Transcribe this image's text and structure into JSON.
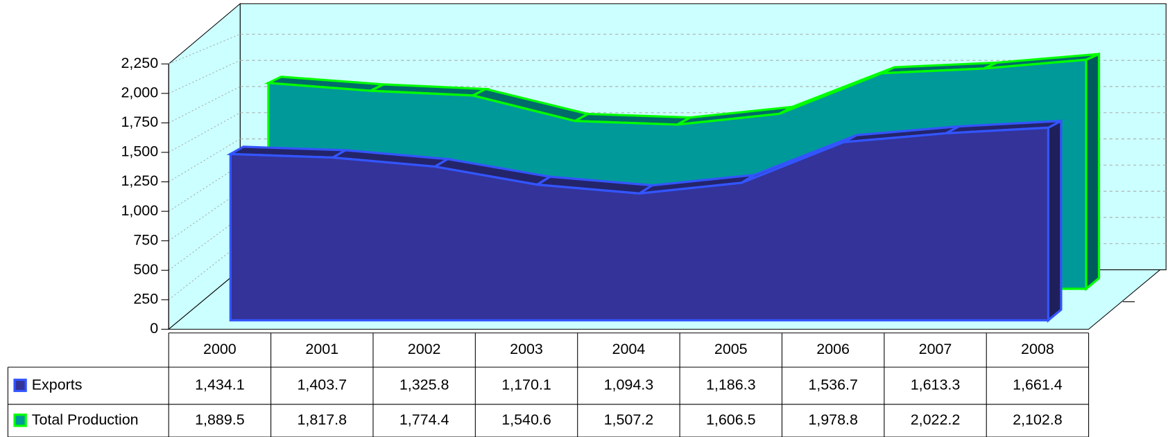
{
  "chart_data": {
    "type": "area3d",
    "categories": [
      "2000",
      "2001",
      "2002",
      "2003",
      "2004",
      "2005",
      "2006",
      "2007",
      "2008"
    ],
    "series": [
      {
        "name": "Exports",
        "color": "#333399",
        "edge": "#3355ff",
        "values": [
          1434.1,
          1403.7,
          1325.8,
          1170.1,
          1094.3,
          1186.3,
          1536.7,
          1613.3,
          1661.4
        ],
        "value_labels": [
          "1,434.1",
          "1,403.7",
          "1,325.8",
          "1,170.1",
          "1,094.3",
          "1,186.3",
          "1,536.7",
          "1,613.3",
          "1,661.4"
        ]
      },
      {
        "name": "Total Production",
        "color": "#009999",
        "edge": "#00ff00",
        "values": [
          1889.5,
          1817.8,
          1774.4,
          1540.6,
          1507.2,
          1606.5,
          1978.8,
          2022.2,
          2102.8
        ],
        "value_labels": [
          "1,889.5",
          "1,817.8",
          "1,774.4",
          "1,540.6",
          "1,507.2",
          "1,606.5",
          "1,978.8",
          "2,022.2",
          "2,102.8"
        ]
      }
    ],
    "ylim": [
      0,
      2250
    ],
    "yticks": [
      0,
      250,
      500,
      750,
      {
        "value": 1000,
        "label": "1,000"
      },
      {
        "value": 1250,
        "label": "1,250"
      },
      {
        "value": 1500,
        "label": "1,500"
      },
      {
        "value": 1750,
        "label": "1,750"
      },
      {
        "value": 2000,
        "label": "2,000"
      },
      {
        "value": 2250,
        "label": "2,250"
      }
    ],
    "grid": true
  }
}
